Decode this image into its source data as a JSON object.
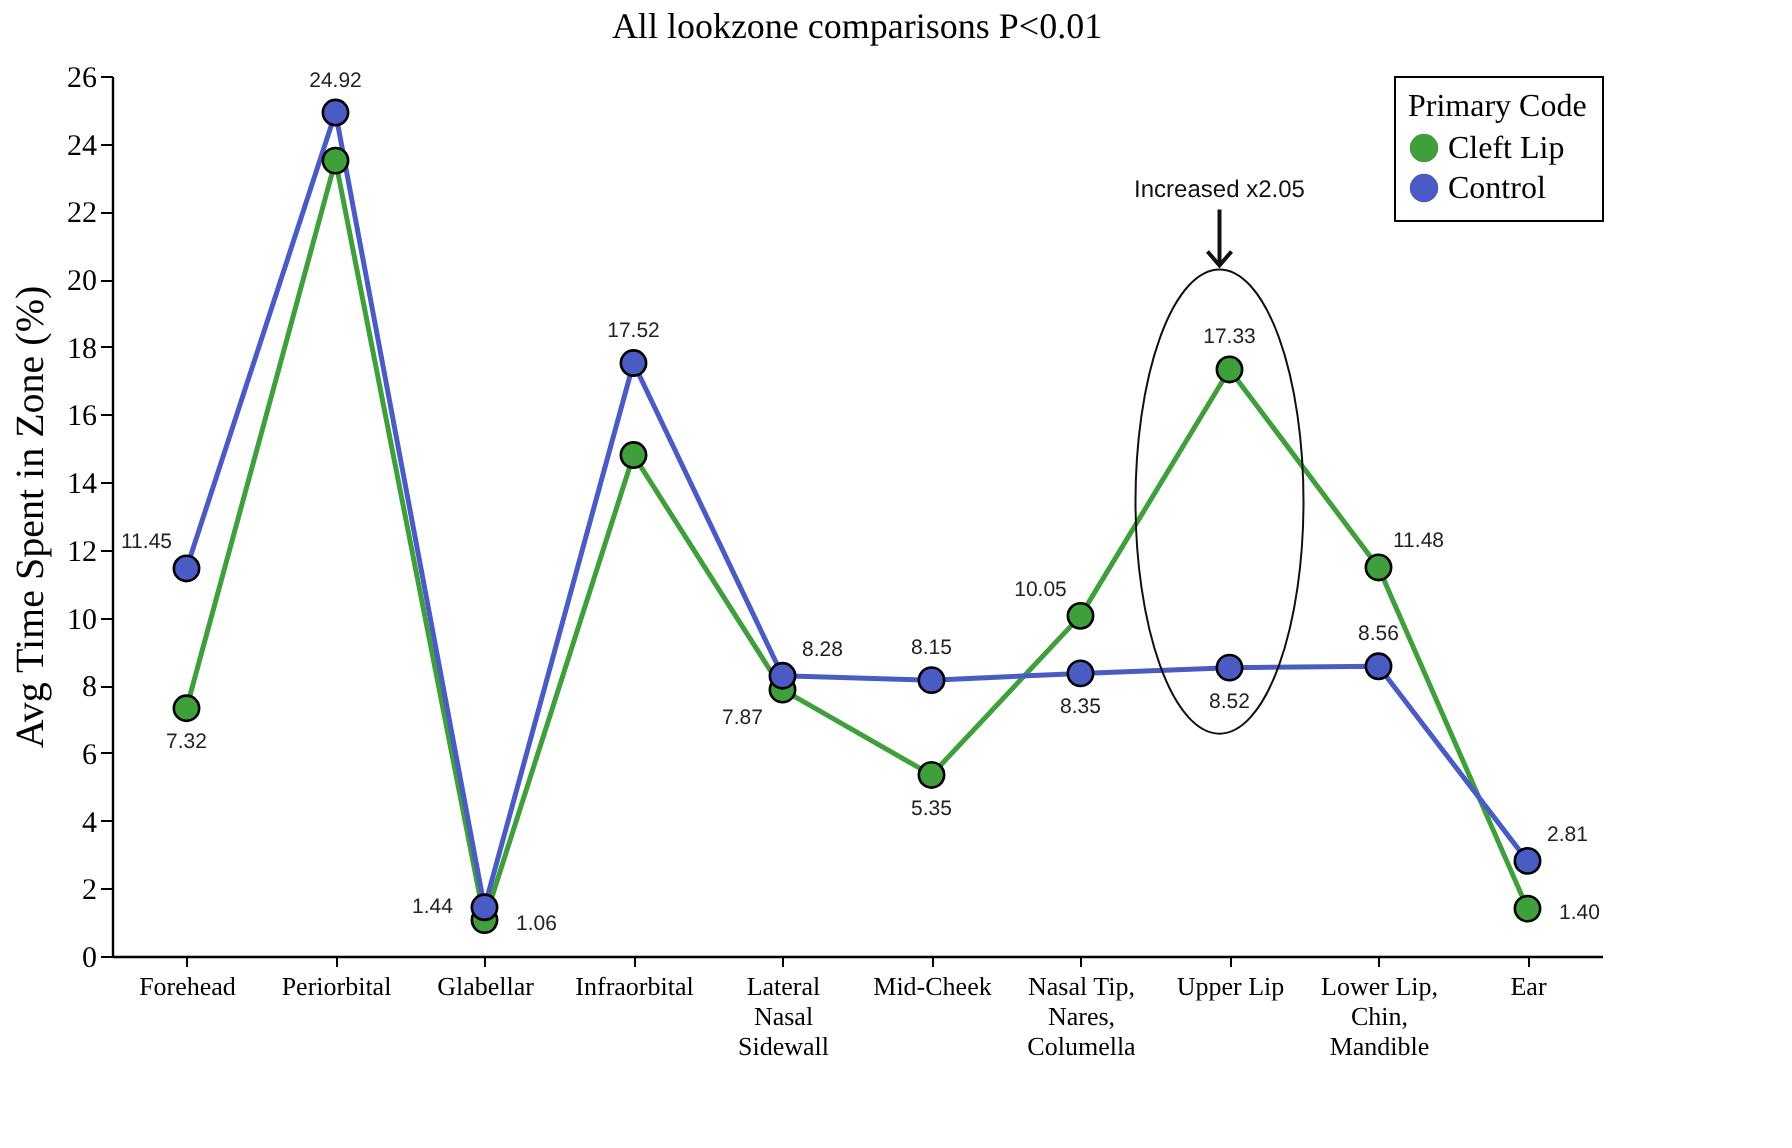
{
  "chart_data": {
    "type": "line",
    "title": "All lookzone comparisons P<0.01",
    "ylabel": "Avg Time Spent in Zone (%)",
    "legend_title": "Primary Code",
    "categories": [
      "Forehead",
      "Periorbital",
      "Glabellar",
      "Infraorbital",
      "Lateral Nasal Sidewall",
      "Mid-Cheek",
      "Nasal Tip, Nares, Columella",
      "Upper Lip",
      "Lower Lip, Chin, Mandible",
      "Ear"
    ],
    "series": [
      {
        "name": "Cleft Lip",
        "color": "#3f9f3a",
        "values": [
          7.32,
          23.5,
          1.06,
          14.8,
          7.87,
          5.35,
          10.05,
          17.33,
          11.48,
          1.4
        ],
        "value_labels": [
          "7.32",
          null,
          "1.06",
          null,
          "7.87",
          "5.35",
          "10.05",
          "17.33",
          "11.48",
          "1.40"
        ]
      },
      {
        "name": "Control",
        "color": "#4a5cc4",
        "values": [
          11.45,
          24.92,
          1.44,
          17.52,
          8.28,
          8.15,
          8.35,
          8.52,
          8.56,
          2.81
        ],
        "value_labels": [
          "11.45",
          "24.92",
          "1.44",
          "17.52",
          "8.28",
          "8.15",
          "8.35",
          "8.52",
          "8.56",
          "2.81"
        ]
      }
    ],
    "ylim": [
      0,
      26
    ],
    "yticks": [
      0,
      2,
      4,
      6,
      8,
      10,
      12,
      14,
      16,
      18,
      20,
      22,
      24,
      26
    ],
    "grid": false,
    "legend": "top right",
    "marker": "circle",
    "line_style": "solid",
    "annotations": [
      "Increased x2.05"
    ]
  }
}
